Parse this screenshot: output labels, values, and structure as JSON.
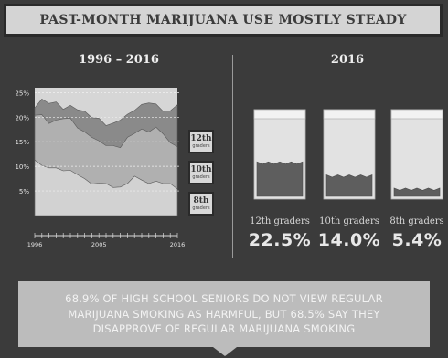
{
  "header": {
    "title": "PAST-MONTH MARIJUANA USE MOSTLY STEADY"
  },
  "left_panel": {
    "title": "1996 – 2016"
  },
  "right_panel": {
    "title": "2016",
    "bags": [
      {
        "label": "12th graders",
        "value": "22.5%",
        "fill_fraction": 0.225
      },
      {
        "label": "10th graders",
        "value": "14.0%",
        "fill_fraction": 0.14
      },
      {
        "label": "8th graders",
        "value": "5.4%",
        "fill_fraction": 0.054
      }
    ]
  },
  "grade_tags": [
    {
      "grade": "12th",
      "sub": "graders"
    },
    {
      "grade": "10th",
      "sub": "graders"
    },
    {
      "grade": "8th",
      "sub": "graders"
    }
  ],
  "callout": {
    "text": "68.9% OF HIGH SCHOOL SENIORS DO NOT VIEW REGULAR\nMARIJUANA SMOKING AS HARMFUL, BUT 68.5% SAY THEY\nDISAPPROVE OF REGULAR MARIJUANA SMOKING"
  },
  "colors": {
    "background": "#3b3b3b",
    "panel_light": "#d4d4d4",
    "series_12th": "#8a8a8a",
    "series_10th": "#b0b0b0",
    "series_8th": "#d2d2d2"
  },
  "chart_data": [
    {
      "type": "area",
      "title": "1996 – 2016",
      "xlabel": "",
      "ylabel": "",
      "x": [
        1996,
        1997,
        1998,
        1999,
        2000,
        2001,
        2002,
        2003,
        2004,
        2005,
        2006,
        2007,
        2008,
        2009,
        2010,
        2011,
        2012,
        2013,
        2014,
        2015,
        2016
      ],
      "xticks": [
        "1996",
        "2005",
        "2016"
      ],
      "yticks": [
        "5%",
        "10%",
        "15%",
        "20%",
        "25%"
      ],
      "ylim": [
        0,
        26
      ],
      "series": [
        {
          "name": "12th graders",
          "values": [
            21.9,
            23.7,
            22.8,
            23.1,
            21.6,
            22.4,
            21.5,
            21.2,
            19.9,
            19.8,
            18.3,
            18.8,
            19.4,
            20.6,
            21.4,
            22.6,
            22.9,
            22.7,
            21.2,
            21.3,
            22.5
          ]
        },
        {
          "name": "10th graders",
          "values": [
            20.4,
            20.5,
            18.7,
            19.4,
            19.7,
            19.8,
            17.8,
            17.0,
            15.9,
            15.2,
            14.2,
            14.2,
            13.8,
            15.9,
            16.7,
            17.6,
            17.0,
            18.0,
            16.6,
            14.8,
            14.0
          ]
        },
        {
          "name": "8th graders",
          "values": [
            11.3,
            10.2,
            9.7,
            9.7,
            9.1,
            9.2,
            8.3,
            7.5,
            6.4,
            6.6,
            6.5,
            5.7,
            5.8,
            6.5,
            8.0,
            7.2,
            6.5,
            7.0,
            6.5,
            6.5,
            5.4
          ]
        }
      ],
      "grid": true,
      "legend": "right"
    },
    {
      "type": "bar",
      "title": "2016",
      "categories": [
        "12th graders",
        "10th graders",
        "8th graders"
      ],
      "values": [
        22.5,
        14.0,
        5.4
      ]
    }
  ]
}
